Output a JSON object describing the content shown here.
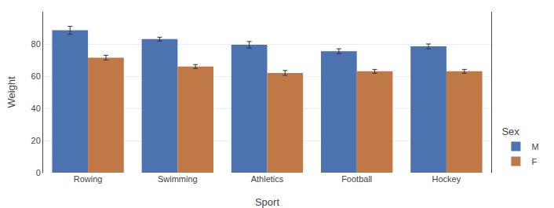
{
  "chart_data": {
    "type": "bar",
    "categories": [
      "Rowing",
      "Swimming",
      "Athletics",
      "Football",
      "Hockey"
    ],
    "series": [
      {
        "name": "M",
        "color": "#4c72b0",
        "values": [
          88.5,
          83.0,
          79.5,
          75.5,
          78.5
        ],
        "errors": [
          2.5,
          1.2,
          2.0,
          1.5,
          1.5
        ]
      },
      {
        "name": "F",
        "color": "#c07846",
        "values": [
          71.5,
          66.0,
          62.0,
          63.0,
          63.0
        ],
        "errors": [
          1.5,
          1.2,
          1.5,
          1.2,
          1.2
        ]
      }
    ],
    "xlabel": "Sport",
    "ylabel": "Weight",
    "legend_title": "Sex",
    "ylim": [
      0,
      100
    ],
    "yticks": [
      0,
      20,
      40,
      60,
      80
    ],
    "grid": true
  }
}
